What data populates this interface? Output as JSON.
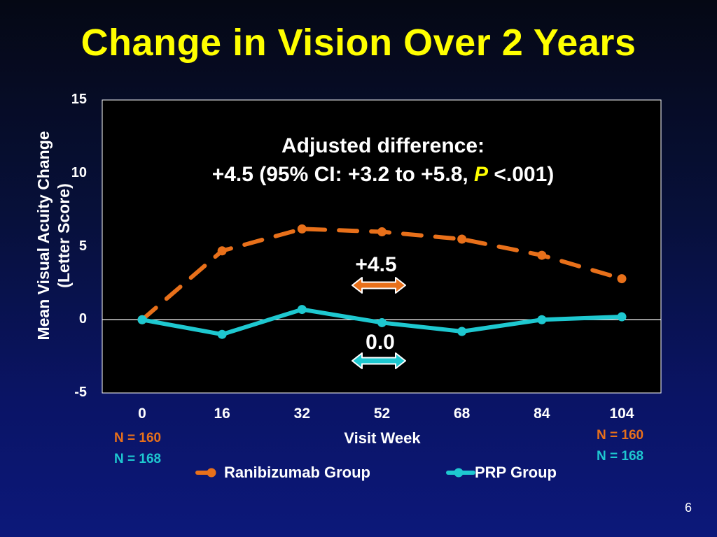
{
  "title": "Change in Vision Over 2 Years",
  "slide_number": "6",
  "colors": {
    "title": "#ffff00",
    "ranibizumab": "#e8701a",
    "prp": "#1ec8d0",
    "plot_bg": "#000000",
    "background": "#0a1466"
  },
  "annotation": {
    "line1": "Adjusted difference:",
    "line2_prefix": "+4.5 (95% CI: +3.2 to +5.8, ",
    "line2_p": "P",
    "line2_suffix": " <.001)",
    "diff_ranibizumab": "+4.5",
    "diff_prp": "0.0"
  },
  "n_labels": {
    "start_orange": "N = 160",
    "start_teal": "N = 168",
    "end_orange": "N = 160",
    "end_teal": "N = 168"
  },
  "legend": {
    "ranibizumab": "Ranibizumab Group",
    "prp": "PRP Group"
  },
  "chart_data": {
    "type": "line",
    "xlabel": "Visit Week",
    "ylabel_line1": "Mean Visual Acuity Change",
    "ylabel_line2": "(Letter Score)",
    "categories": [
      "0",
      "16",
      "32",
      "52",
      "68",
      "84",
      "104"
    ],
    "yticks": [
      "15",
      "10",
      "5",
      "0",
      "-5"
    ],
    "ylim": [
      -5,
      15
    ],
    "grid": false,
    "legend_position": "bottom",
    "series": [
      {
        "name": "Ranibizumab Group",
        "style": "dashed",
        "values": [
          0.0,
          4.7,
          6.2,
          6.0,
          5.5,
          4.4,
          2.8
        ]
      },
      {
        "name": "PRP Group",
        "style": "solid",
        "values": [
          0.0,
          -1.0,
          0.7,
          -0.2,
          -0.8,
          0.0,
          0.2
        ]
      }
    ]
  }
}
